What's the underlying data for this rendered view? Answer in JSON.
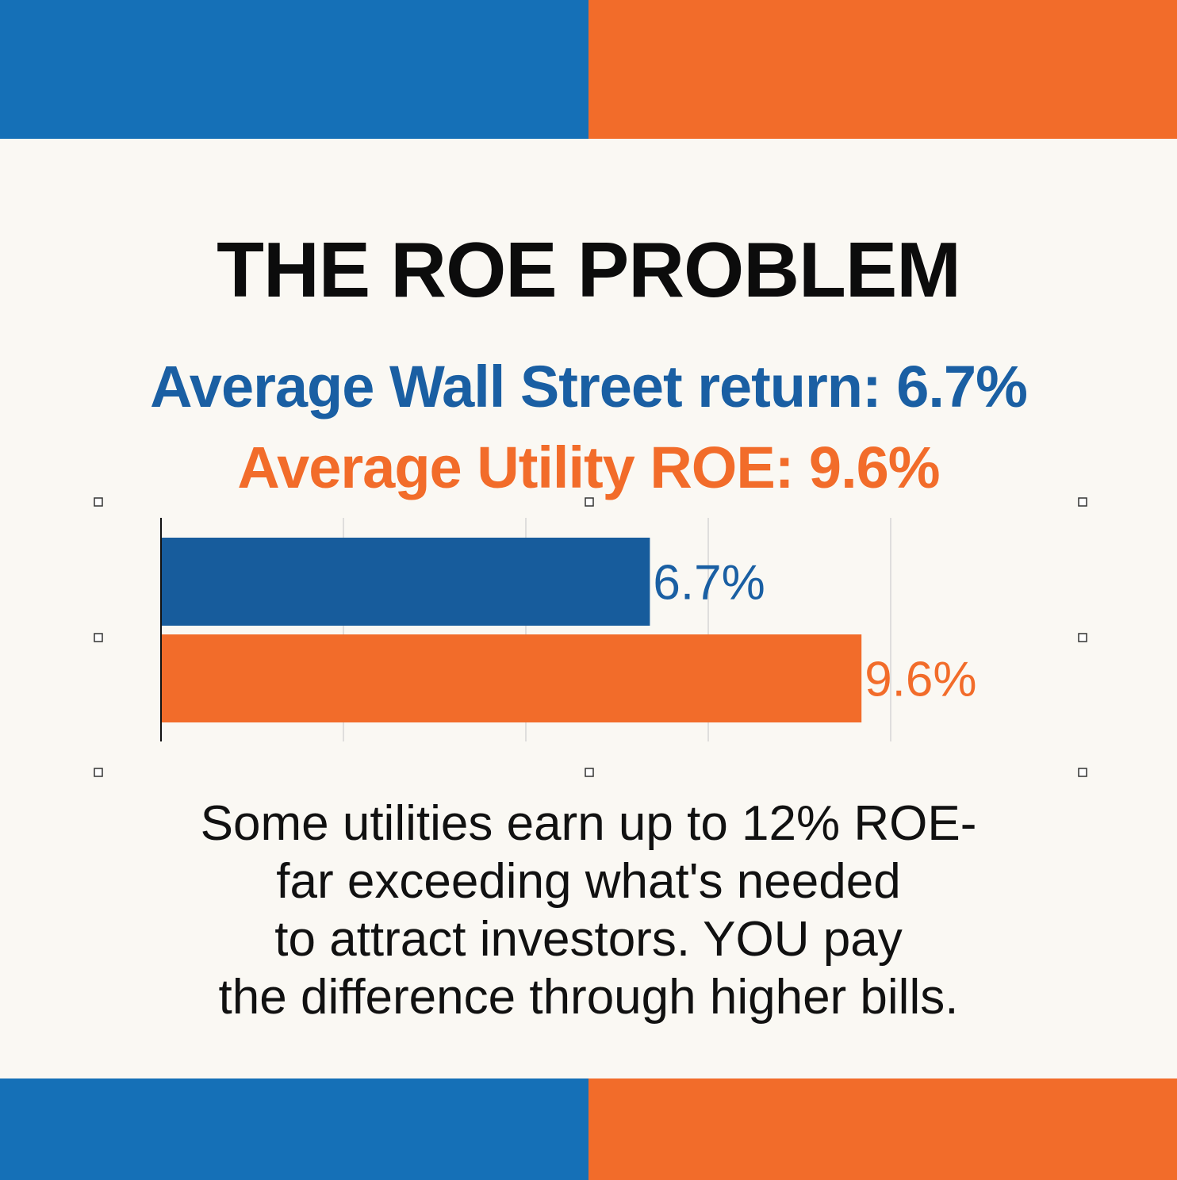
{
  "colors": {
    "blue": "#1570b7",
    "blue_text": "#1a5fa3",
    "blue_bar": "#175c9c",
    "orange": "#f26c2a",
    "background": "#faf8f3"
  },
  "title": "THE ROE PROBLEM",
  "stats": {
    "wall_street": "Average Wall Street return: 6.7%",
    "utility": "Average Utility ROE: 9.6%"
  },
  "chart_data": {
    "type": "bar",
    "orientation": "horizontal",
    "categories": [
      "",
      ""
    ],
    "values": [
      6.7,
      9.6
    ],
    "data_labels": [
      "6.7%",
      "9.6%"
    ],
    "bar_colors": [
      "#175c9c",
      "#f26c2a"
    ],
    "title": "",
    "xlabel": "",
    "ylabel": "",
    "xlim": [
      0,
      10
    ],
    "grid": true,
    "legend": "none"
  },
  "footnote": {
    "lines": [
      "Some utilities earn up to 12% ROE-",
      "far exceeding what's needed",
      "to attract investors. YOU pay",
      "the difference through higher bills."
    ]
  }
}
